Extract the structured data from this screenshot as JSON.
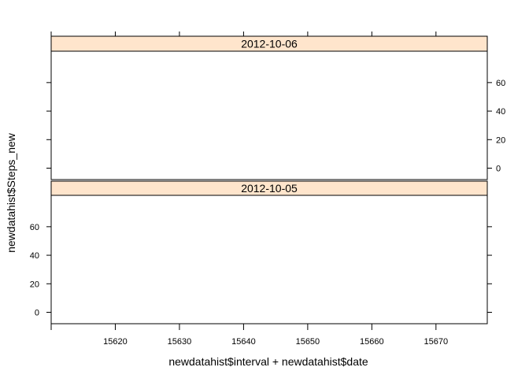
{
  "chart_data": {
    "type": "scatter",
    "xlabel": "newdatahist$interval + newdatahist$date",
    "ylabel": "newdatahist$Steps_new",
    "x_ticks": [
      15620,
      15630,
      15640,
      15650,
      15660,
      15670
    ],
    "xlim": [
      15610,
      15678
    ],
    "y_ticks": [
      0,
      20,
      40,
      60
    ],
    "ylim": [
      -8,
      82
    ],
    "panels": [
      {
        "strip": "2012-10-06",
        "points": []
      },
      {
        "strip": "2012-10-05",
        "points": []
      }
    ],
    "strip_color": "#ffe5cc"
  }
}
